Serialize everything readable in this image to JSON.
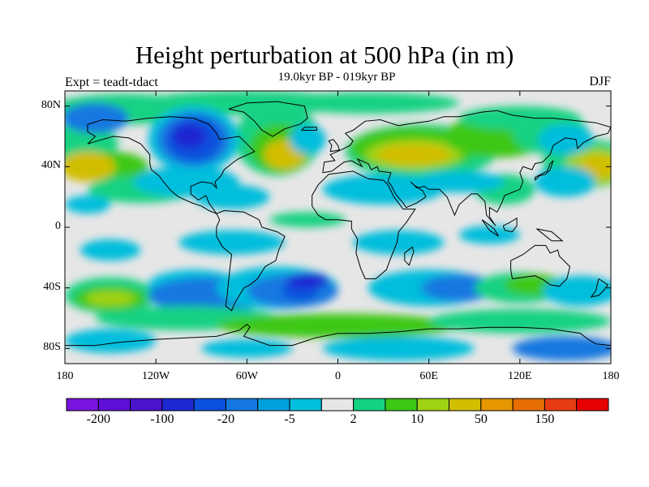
{
  "title": "Height perturbation at 500 hPa (in m)",
  "subtitle": "19.0kyr BP - 019kyr BP",
  "expt_label": "Expt = teadt-tdact",
  "season": "DJF",
  "map": {
    "lat_ticks": [
      "80N",
      "40N",
      "0",
      "40S",
      "80S"
    ],
    "lon_ticks": [
      "180",
      "120W",
      "60W",
      "0",
      "60E",
      "120E",
      "180"
    ],
    "lat_range": [
      -90,
      90
    ],
    "lon_range": [
      -180,
      180
    ]
  },
  "colorbar": {
    "colors": [
      "#7a14e0",
      "#5f0fd6",
      "#4a14cc",
      "#1e28d2",
      "#0a50dc",
      "#1478e0",
      "#00a0dc",
      "#00bedc",
      "#e6e6e6",
      "#14d282",
      "#3cc814",
      "#a0d214",
      "#d2be00",
      "#e69600",
      "#e66e00",
      "#e63c14",
      "#e60000"
    ],
    "labels": [
      "-200",
      "-100",
      "-20",
      "-5",
      "2",
      "10",
      "50",
      "150"
    ],
    "label_boundaries": [
      1,
      3,
      5,
      7,
      9,
      11,
      13,
      15
    ]
  },
  "colors": {
    "neutral": "#e6e6e6",
    "light_blue": "#00bedc",
    "mid_blue": "#1478e0",
    "blue": "#0a50dc",
    "dark_blue": "#1e28d2",
    "green": "#14d282",
    "lime": "#3cc814",
    "yellow_green": "#a0d214",
    "gold": "#d2be00",
    "orange": "#e69600"
  }
}
